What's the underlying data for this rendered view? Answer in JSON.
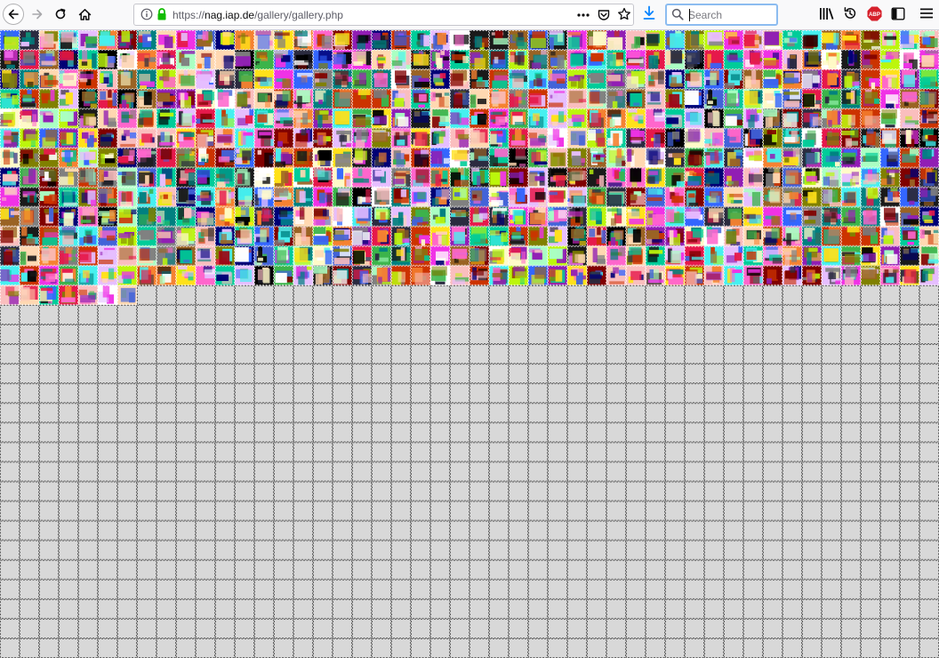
{
  "browser": {
    "url_scheme": "https://",
    "url_host": "nag.iap.de",
    "url_path": "/gallery/gallery.php",
    "search_placeholder": "Search",
    "abp_label": "ABP"
  },
  "gallery": {
    "columns": 48,
    "rows": 32,
    "filled_full_rows": 13,
    "filled_cells_last_row": 7,
    "empty_cell_color": "#d8d8d8",
    "cell_border_color": "#555555"
  },
  "colors": {
    "chrome_bg": "#f9f9fa",
    "accent": "#0a84ff",
    "lock_green": "#12bc00",
    "abp_red": "#d6202b"
  },
  "icons": [
    "back-arrow-icon",
    "forward-arrow-icon",
    "reload-icon",
    "home-icon",
    "info-icon",
    "lock-icon",
    "page-actions-icon",
    "pocket-icon",
    "bookmark-star-icon",
    "download-icon",
    "search-icon",
    "library-icon",
    "history-icon",
    "adblock-plus-icon",
    "sidebar-icon",
    "hamburger-menu-icon"
  ]
}
